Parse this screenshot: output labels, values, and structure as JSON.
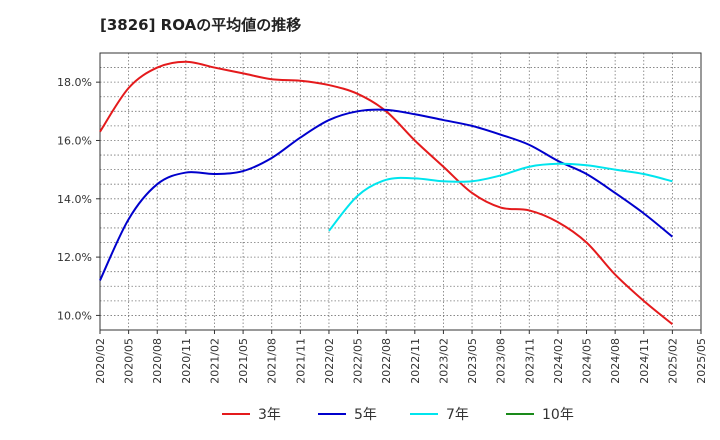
{
  "title": "[3826]  ROAの平均値の推移",
  "chart_data": {
    "type": "line",
    "x": [
      "2020/02",
      "2020/05",
      "2020/08",
      "2020/11",
      "2021/02",
      "2021/05",
      "2021/08",
      "2021/11",
      "2022/02",
      "2022/05",
      "2022/08",
      "2022/11",
      "2023/02",
      "2023/05",
      "2023/08",
      "2023/11",
      "2024/02",
      "2024/05",
      "2024/08",
      "2024/11",
      "2025/02",
      "2025/05"
    ],
    "ylim": [
      9.5,
      19.0
    ],
    "yticks": [
      10.0,
      12.0,
      14.0,
      16.0,
      18.0
    ],
    "ytick_labels": [
      "10.0%",
      "12.0%",
      "14.0%",
      "16.0%",
      "18.0%"
    ],
    "grid": true,
    "legend_position": "bottom",
    "series": [
      {
        "name": "3年",
        "color": "#e41a1c",
        "values": [
          16.3,
          17.8,
          18.5,
          18.7,
          18.5,
          18.3,
          18.1,
          18.05,
          17.9,
          17.6,
          17.0,
          16.0,
          15.1,
          14.2,
          13.7,
          13.6,
          13.2,
          12.5,
          11.4,
          10.5,
          9.7,
          null
        ]
      },
      {
        "name": "5年",
        "color": "#0000cc",
        "values": [
          11.2,
          13.3,
          14.5,
          14.9,
          14.85,
          14.95,
          15.4,
          16.1,
          16.7,
          17.0,
          17.05,
          16.9,
          16.7,
          16.5,
          16.2,
          15.85,
          15.3,
          14.85,
          14.2,
          13.5,
          12.7,
          null
        ]
      },
      {
        "name": "7年",
        "color": "#00e5ee",
        "values": [
          null,
          null,
          null,
          null,
          null,
          null,
          null,
          null,
          12.9,
          14.1,
          14.65,
          14.7,
          14.6,
          14.6,
          14.8,
          15.1,
          15.2,
          15.15,
          15.0,
          14.85,
          14.6,
          null
        ]
      },
      {
        "name": "10年",
        "color": "#1a8a1a",
        "values": [
          null,
          null,
          null,
          null,
          null,
          null,
          null,
          null,
          null,
          null,
          null,
          null,
          null,
          null,
          null,
          null,
          null,
          null,
          null,
          null,
          null,
          null
        ]
      }
    ]
  }
}
